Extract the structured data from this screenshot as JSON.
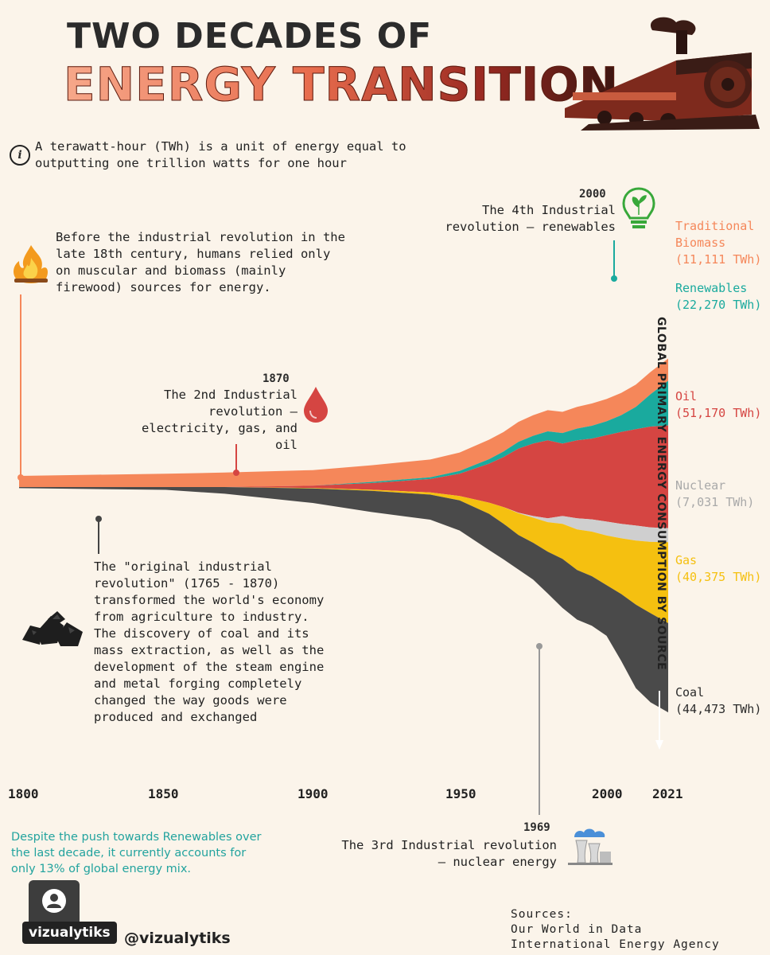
{
  "title": {
    "line1": "TWO DECADES OF",
    "line2": "ENERGY TRANSITION"
  },
  "note": "A terawatt-hour (TWh) is a unit of energy equal to outputting one trillion watts for one hour",
  "annotations": {
    "preindustrial": "Before the industrial revolution in the late 18th century, humans relied only on muscular and biomass (mainly firewood) sources for energy.",
    "second": {
      "year": "1870",
      "text": "The 2nd Industrial revolution – electricity, gas, and oil"
    },
    "first": "The \"original industrial revolution\" (1765 - 1870) transformed the world's economy from agriculture to industry. The discovery of coal and its mass extraction, as well as the development of the steam engine and metal forging completely changed the way goods were produced and exchanged",
    "fourth": {
      "year": "2000",
      "text": "The 4th Industrial revolution – renewables"
    },
    "third": {
      "year": "1969",
      "text": "The 3rd Industrial revolution – nuclear energy"
    }
  },
  "vertical_label": "GLOBAL PRIMARY ENERGY CONSUMPTION BY SOURCE",
  "footer_note": "Despite the push towards Renewables over the last decade, it currently accounts for only 13% of global energy mix.",
  "brand": "vizualytiks",
  "handle": "@vizualytiks",
  "sources": [
    "Sources:",
    "Our World in Data",
    "International Energy Agency"
  ],
  "colors": {
    "biomass": "#f5875a",
    "renewables": "#1aaa9e",
    "oil": "#d54542",
    "nuclear": "#cfcfcf",
    "gas": "#f5c010",
    "coal": "#4a4a4a",
    "background": "#fbf4ea"
  },
  "chart_data": {
    "type": "area",
    "title": "",
    "xlabel": "",
    "ylabel": "GLOBAL PRIMARY ENERGY CONSUMPTION BY SOURCE",
    "x_ticks": [
      "1800",
      "1850",
      "1900",
      "1950",
      "2000",
      "2021"
    ],
    "x": [
      1800,
      1850,
      1870,
      1900,
      1920,
      1940,
      1950,
      1960,
      1965,
      1970,
      1975,
      1980,
      1985,
      1990,
      1995,
      2000,
      2005,
      2010,
      2015,
      2021
    ],
    "series": [
      {
        "name": "Traditional Biomass",
        "label": "(11,111 TWh)",
        "values": [
          5556,
          6667,
          7222,
          7778,
          8333,
          8889,
          9167,
          9722,
          9722,
          10000,
          10278,
          10556,
          10556,
          10833,
          11111,
          11111,
          11111,
          11111,
          11111,
          11111
        ]
      },
      {
        "name": "Renewables",
        "label": "(22,270 TWh)",
        "values": [
          0,
          0,
          0,
          0,
          556,
          833,
          1389,
          2222,
          2778,
          3333,
          3889,
          4444,
          5278,
          5833,
          6389,
          6944,
          8333,
          11111,
          16111,
          22270
        ]
      },
      {
        "name": "Oil",
        "label": "(51,170 TWh)",
        "values": [
          0,
          0,
          0,
          1111,
          3333,
          6667,
          11111,
          19444,
          25000,
          31944,
          36111,
          38889,
          36111,
          38889,
          40278,
          43056,
          45833,
          48056,
          50278,
          51170
        ]
      },
      {
        "name": "Nuclear",
        "label": "(7,031 TWh)",
        "values": [
          0,
          0,
          0,
          0,
          0,
          0,
          0,
          0,
          0,
          278,
          833,
          1944,
          3889,
          5556,
          6111,
          6944,
          7222,
          7500,
          7222,
          7031
        ]
      },
      {
        "name": "Gas",
        "label": "(40,375 TWh)",
        "values": [
          0,
          0,
          0,
          278,
          556,
          1111,
          2222,
          5556,
          8333,
          10833,
          12500,
          14722,
          17500,
          20278,
          22222,
          24722,
          27778,
          31944,
          35556,
          40375
        ]
      },
      {
        "name": "Coal",
        "label": "(44,473 TWh)",
        "values": [
          556,
          1389,
          3333,
          7222,
          10556,
          12500,
          15000,
          18056,
          17778,
          17222,
          18333,
          20833,
          24444,
          24722,
          24722,
          25278,
          33333,
          41667,
          44444,
          44473
        ]
      }
    ],
    "layout": "streamgraph",
    "legend": "right"
  }
}
